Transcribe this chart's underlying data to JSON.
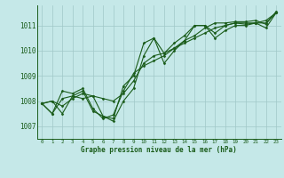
{
  "bg_color": "#c5e8e8",
  "grid_color": "#a0c8c8",
  "line_color": "#1a5c1a",
  "marker_color": "#1a5c1a",
  "text_color": "#1a5c1a",
  "xlabel": "Graphe pression niveau de la mer (hPa)",
  "ylim": [
    1006.5,
    1011.8
  ],
  "xlim": [
    -0.5,
    23.5
  ],
  "yticks": [
    1007,
    1008,
    1009,
    1010,
    1011
  ],
  "xtick_labels": [
    "0",
    "1",
    "2",
    "3",
    "4",
    "5",
    "6",
    "7",
    "8",
    "9",
    "10",
    "11",
    "12",
    "13",
    "14",
    "15",
    "16",
    "17",
    "18",
    "19",
    "20",
    "21",
    "22",
    "23"
  ],
  "series": [
    [
      1007.9,
      1008.0,
      1007.5,
      1008.2,
      1008.4,
      1007.6,
      1007.4,
      1007.3,
      1008.6,
      1009.0,
      1010.3,
      1010.5,
      1009.5,
      1010.0,
      1010.4,
      1011.0,
      1011.0,
      1010.5,
      1010.8,
      1011.0,
      1011.0,
      1011.1,
      1011.2,
      1011.5
    ],
    [
      1007.9,
      1008.0,
      1007.8,
      1008.1,
      1008.3,
      1008.2,
      1008.1,
      1008.0,
      1008.3,
      1008.8,
      1009.5,
      1009.8,
      1009.9,
      1010.1,
      1010.3,
      1010.5,
      1010.7,
      1010.9,
      1011.0,
      1011.1,
      1011.1,
      1011.1,
      1011.1,
      1011.5
    ],
    [
      1007.9,
      1007.5,
      1008.1,
      1008.2,
      1008.1,
      1008.2,
      1007.4,
      1007.2,
      1008.0,
      1008.5,
      1009.8,
      1010.5,
      1009.9,
      1010.3,
      1010.6,
      1011.0,
      1011.0,
      1010.7,
      1011.0,
      1011.1,
      1011.05,
      1011.1,
      1010.9,
      1011.5
    ],
    [
      1007.9,
      1007.5,
      1008.4,
      1008.3,
      1008.5,
      1007.7,
      1007.3,
      1007.45,
      1008.4,
      1009.1,
      1009.4,
      1009.6,
      1009.8,
      1010.1,
      1010.4,
      1010.6,
      1010.9,
      1011.1,
      1011.1,
      1011.15,
      1011.15,
      1011.2,
      1011.05,
      1011.55
    ]
  ]
}
